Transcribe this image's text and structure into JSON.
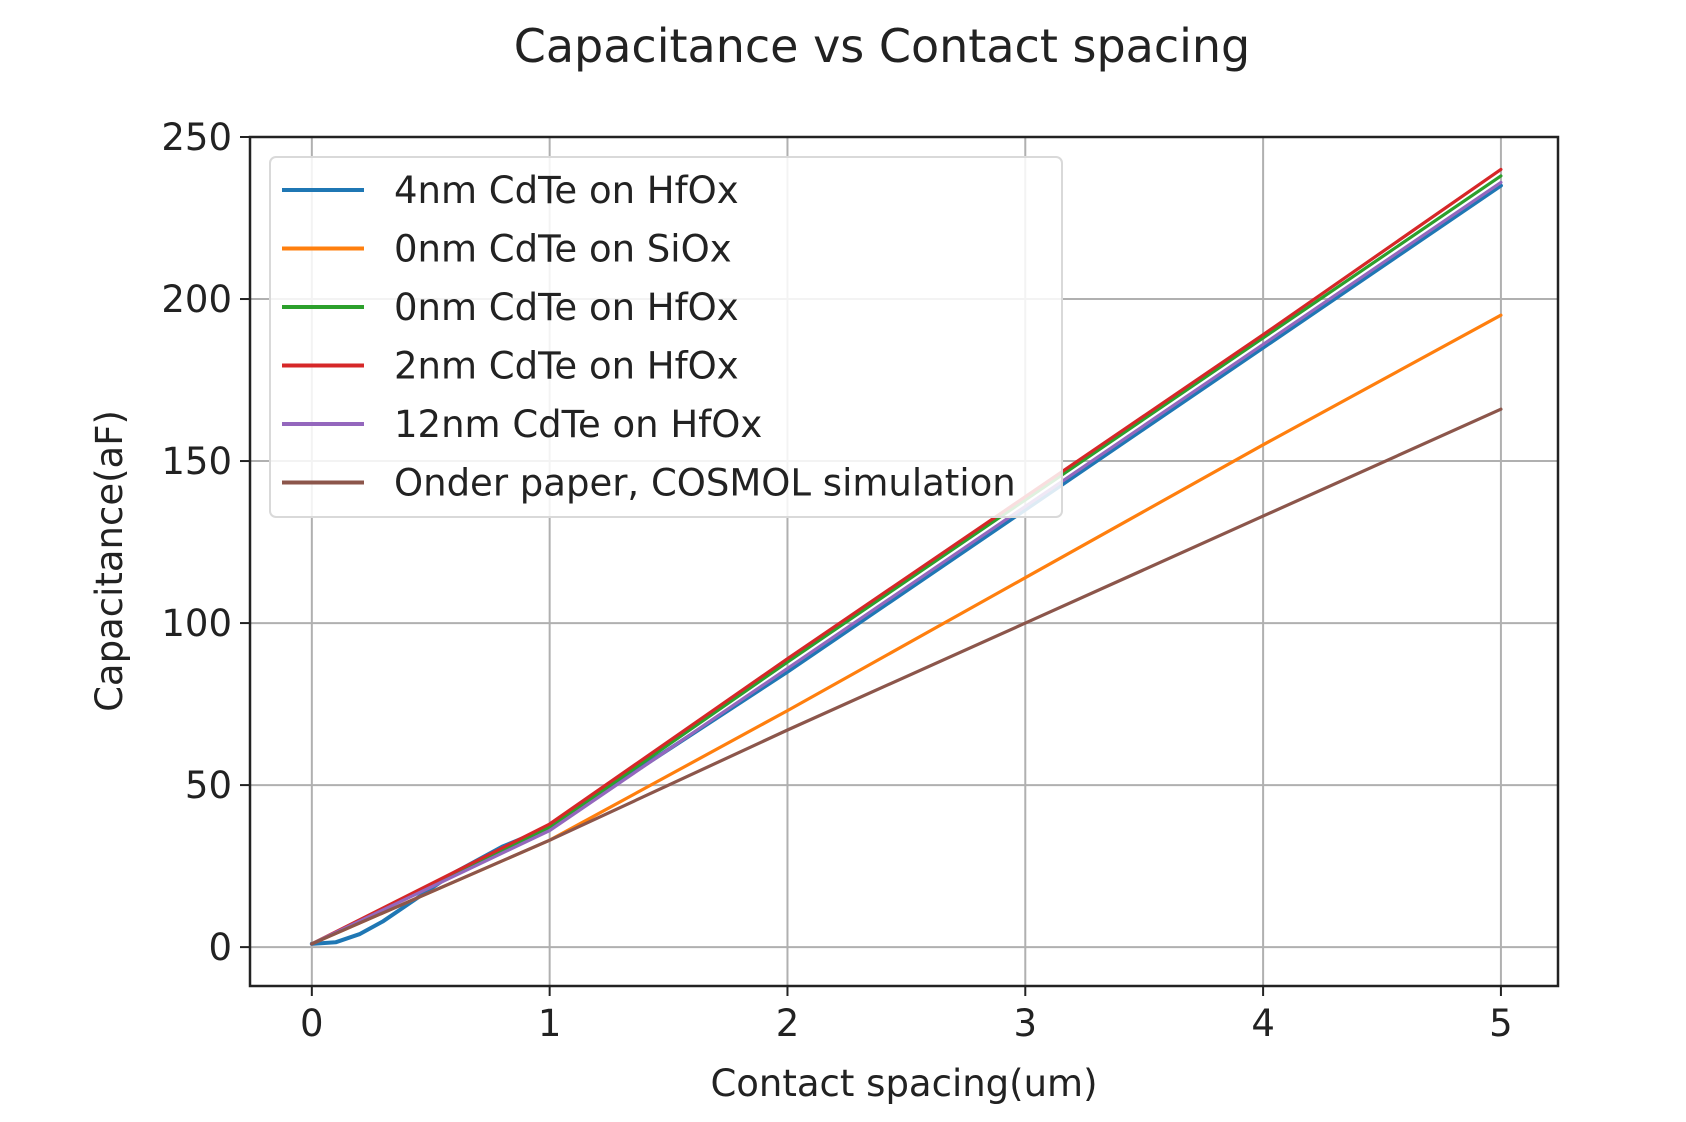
{
  "chart_data": {
    "type": "line",
    "title": "Capacitance vs Contact spacing",
    "xlabel": "Contact spacing(um)",
    "ylabel": "Capacitance(aF)",
    "xlim": [
      -0.26,
      5.24
    ],
    "ylim": [
      -12,
      250
    ],
    "xticks": [
      0,
      1,
      2,
      3,
      4,
      5
    ],
    "yticks": [
      0,
      50,
      100,
      150,
      200,
      250
    ],
    "grid": true,
    "legend_position": "upper-left",
    "series": [
      {
        "name": "4nm CdTe on HfOx",
        "color": "#1f77b4",
        "x": [
          0,
          0.1,
          0.2,
          0.3,
          0.4,
          0.5,
          0.6,
          0.8,
          1,
          1.5,
          2,
          2.5,
          3,
          3.5,
          4,
          4.5,
          5
        ],
        "y": [
          1,
          1.5,
          4,
          8,
          13,
          18,
          23,
          31,
          37,
          61,
          85,
          110,
          135,
          160,
          185,
          210,
          235
        ]
      },
      {
        "name": "0nm CdTe on SiOx",
        "color": "#ff7f0e",
        "x": [
          0,
          1,
          2,
          3,
          4,
          5
        ],
        "y": [
          1,
          33,
          73,
          114,
          155,
          195
        ]
      },
      {
        "name": "0nm CdTe on HfOx",
        "color": "#2ca02c",
        "x": [
          0,
          1,
          2,
          3,
          4,
          5
        ],
        "y": [
          1,
          37,
          88,
          138,
          188,
          238
        ]
      },
      {
        "name": "2nm CdTe on HfOx",
        "color": "#d62728",
        "x": [
          0,
          1,
          2,
          3,
          4,
          5
        ],
        "y": [
          1,
          38,
          89,
          139,
          189,
          240
        ]
      },
      {
        "name": "12nm CdTe on HfOx",
        "color": "#9467bd",
        "x": [
          0,
          1,
          2,
          3,
          4,
          5
        ],
        "y": [
          1,
          36,
          86,
          136,
          186,
          236
        ]
      },
      {
        "name": "Onder paper, COSMOL simulation",
        "color": "#8c564b",
        "x": [
          0,
          1,
          2,
          3,
          4,
          5
        ],
        "y": [
          1,
          33,
          67,
          100,
          133,
          166
        ]
      }
    ]
  }
}
